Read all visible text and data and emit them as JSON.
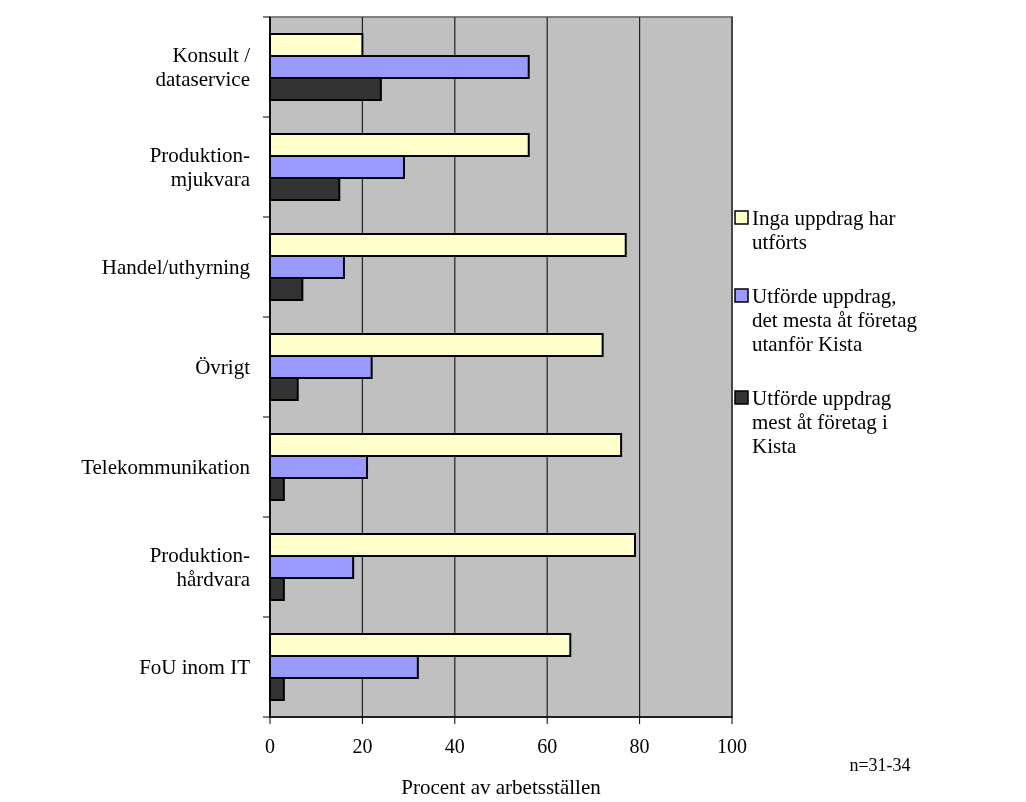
{
  "chart_data": {
    "type": "bar",
    "orientation": "horizontal",
    "xlabel": "Procent av arbetsställen",
    "categories": [
      "Konsult /\ndataservice",
      "Produktion-\nmjukvara",
      "Handel/uthyrning",
      "Övrigt",
      "Telekommunikation",
      "Produktion-\nhårdvara",
      "FoU inom IT"
    ],
    "series": [
      {
        "name": "Inga uppdrag har\nutförts",
        "color": "#ffffcc",
        "values": [
          20,
          56,
          77,
          72,
          76,
          79,
          65
        ]
      },
      {
        "name": "Utförde uppdrag,\ndet mesta åt företag\nutanför Kista",
        "color": "#9999ff",
        "values": [
          56,
          29,
          16,
          22,
          21,
          18,
          32
        ]
      },
      {
        "name": "Utförde uppdrag\nmest åt företag i\nKista",
        "color": "#333333",
        "values": [
          24,
          15,
          7,
          6,
          3,
          3,
          3
        ]
      }
    ],
    "xlim": [
      0,
      100
    ],
    "xticks": [
      0,
      20,
      40,
      60,
      80,
      100
    ],
    "grid": "x",
    "legend": "right",
    "annotations": [
      "n=31-34"
    ]
  }
}
